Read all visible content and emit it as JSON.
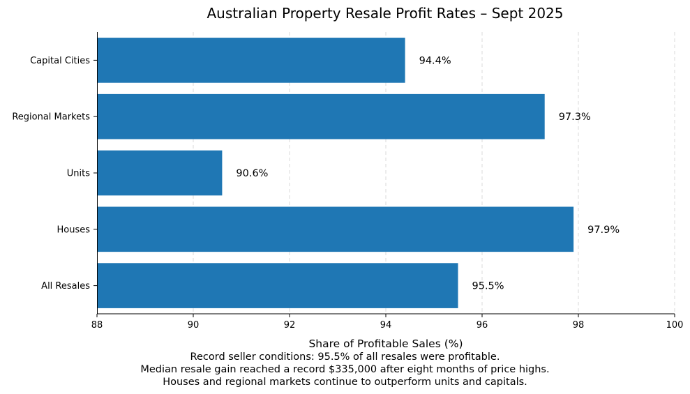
{
  "chart_data": {
    "type": "bar",
    "orientation": "horizontal",
    "title": "Australian Property Resale Profit Rates – Sept 2025",
    "xlabel": "Share of Profitable Sales (%)",
    "ylabel": "",
    "xlim": [
      88,
      100
    ],
    "xticks": [
      88,
      90,
      92,
      94,
      96,
      98,
      100
    ],
    "grid": "x-dashed",
    "categories": [
      "All Resales",
      "Houses",
      "Units",
      "Regional Markets",
      "Capital Cities"
    ],
    "values": [
      95.5,
      97.9,
      90.6,
      97.3,
      94.4
    ],
    "value_labels": [
      "95.5%",
      "97.9%",
      "90.6%",
      "97.3%",
      "94.4%"
    ],
    "bar_color": "#1f77b4",
    "grid_color": "#d9d9d9"
  },
  "caption": {
    "line1": "Record seller conditions: 95.5% of all resales were profitable.",
    "line2": "Median resale gain reached a record $335,000 after eight months of price highs.",
    "line3": "Houses and regional markets continue to outperform units and capitals."
  }
}
